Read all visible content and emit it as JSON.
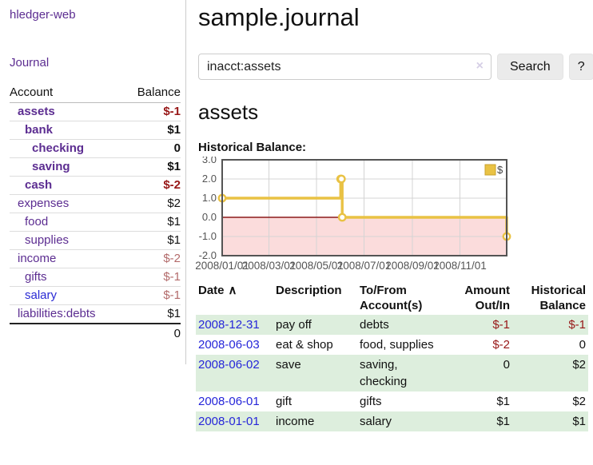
{
  "app": {
    "brand": "hledger-web"
  },
  "sidebar": {
    "nav": {
      "journal_label": "Journal"
    },
    "table": {
      "headers": [
        "Account",
        "Balance"
      ],
      "accounts": [
        {
          "name": "assets",
          "depth": 1,
          "bold": true,
          "balance": "$-1",
          "balance_tone": "neg",
          "link_tone": "purple"
        },
        {
          "name": "bank",
          "depth": 2,
          "bold": true,
          "balance": "$1",
          "balance_tone": "plain",
          "link_tone": "purple"
        },
        {
          "name": "checking",
          "depth": 3,
          "bold": true,
          "balance": "0",
          "balance_tone": "plain",
          "link_tone": "purple"
        },
        {
          "name": "saving",
          "depth": 3,
          "bold": true,
          "balance": "$1",
          "balance_tone": "plain",
          "link_tone": "purple"
        },
        {
          "name": "cash",
          "depth": 2,
          "bold": true,
          "balance": "$-2",
          "balance_tone": "neg",
          "link_tone": "purple"
        },
        {
          "name": "expenses",
          "depth": 1,
          "bold": false,
          "balance": "$2",
          "balance_tone": "plain",
          "link_tone": "purple"
        },
        {
          "name": "food",
          "depth": 2,
          "bold": false,
          "balance": "$1",
          "balance_tone": "plain",
          "link_tone": "purple"
        },
        {
          "name": "supplies",
          "depth": 2,
          "bold": false,
          "balance": "$1",
          "balance_tone": "plain",
          "link_tone": "purple"
        },
        {
          "name": "income",
          "depth": 1,
          "bold": false,
          "balance": "$-2",
          "balance_tone": "negmuted",
          "link_tone": "purple"
        },
        {
          "name": "gifts",
          "depth": 2,
          "bold": false,
          "balance": "$-1",
          "balance_tone": "negmuted",
          "link_tone": "purple"
        },
        {
          "name": "salary",
          "depth": 2,
          "bold": false,
          "balance": "$-1",
          "balance_tone": "negmuted",
          "link_tone": "blue"
        },
        {
          "name": "liabilities:debts",
          "depth": 1,
          "bold": false,
          "balance": "$1",
          "balance_tone": "plain",
          "link_tone": "purple"
        }
      ],
      "total": "0"
    }
  },
  "header": {
    "title": "sample.journal"
  },
  "search": {
    "value": "inacct:assets",
    "clear_icon": "×",
    "button_label": "Search",
    "help_label": "?"
  },
  "account_page": {
    "heading": "assets",
    "chart_title": "Historical Balance:"
  },
  "chart_data": {
    "type": "line",
    "title": "Historical Balance",
    "step": true,
    "series": [
      {
        "name": "$",
        "color": "#e9c244",
        "points": [
          [
            "2008-01-01",
            1
          ],
          [
            "2008-06-01",
            2
          ],
          [
            "2008-06-02",
            2
          ],
          [
            "2008-06-03",
            0
          ],
          [
            "2008-12-31",
            -1
          ]
        ]
      }
    ],
    "x_range": [
      "2008-01-01",
      "2008-12-31"
    ],
    "x_tick_labels": [
      "2008/01/01",
      "2008/03/01",
      "2008/05/01",
      "2008/07/01",
      "2008/09/01",
      "2008/11/01"
    ],
    "y_ticks": [
      "3.0",
      "2.0",
      "1.0",
      "0.0",
      "-1.0",
      "-2.0"
    ],
    "ylim": [
      -2,
      3
    ],
    "grid": true,
    "legend_position": "top-right",
    "negative_region_color": "#fbdcdc",
    "zero_line_color": "#8b1a1a",
    "grid_color": "#d4d4d4",
    "frame_color": "#545454"
  },
  "register": {
    "sort_icon": "∧",
    "headers": [
      {
        "line1": "Date",
        "line2": ""
      },
      {
        "line1": "Description",
        "line2": ""
      },
      {
        "line1": "To/From",
        "line2": "Account(s)"
      },
      {
        "line1": "Amount",
        "line2": "Out/In"
      },
      {
        "line1": "Historical",
        "line2": "Balance"
      }
    ],
    "rows": [
      {
        "date": "2008-12-31",
        "description": "pay off",
        "accounts": "debts",
        "amount": "$-1",
        "amount_negative": true,
        "balance": "$-1",
        "balance_negative": true
      },
      {
        "date": "2008-06-03",
        "description": "eat & shop",
        "accounts": "food, supplies",
        "amount": "$-2",
        "amount_negative": true,
        "balance": "0",
        "balance_negative": false
      },
      {
        "date": "2008-06-02",
        "description": "save",
        "accounts": "saving, checking",
        "amount": "0",
        "amount_negative": false,
        "balance": "$2",
        "balance_negative": false
      },
      {
        "date": "2008-06-01",
        "description": "gift",
        "accounts": "gifts",
        "amount": "$1",
        "amount_negative": false,
        "balance": "$2",
        "balance_negative": false
      },
      {
        "date": "2008-01-01",
        "description": "income",
        "accounts": "salary",
        "amount": "$1",
        "amount_negative": false,
        "balance": "$1",
        "balance_negative": false
      }
    ]
  }
}
